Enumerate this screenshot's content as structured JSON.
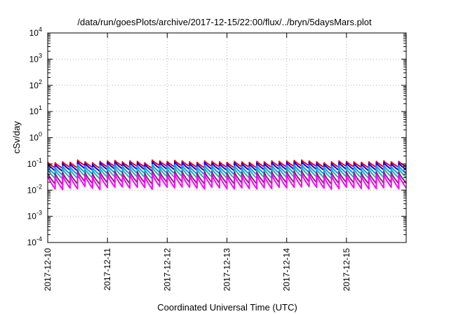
{
  "chart_data": {
    "type": "line",
    "title": "/data/run/goesPlots/archive/2017-12-15/22:00/flux/../bryn/5daysMars.plot",
    "xlabel": "Coordinated Universal Time (UTC)",
    "ylabel": "cSv/day",
    "yscale": "log",
    "ylim": [
      0.0001,
      10000
    ],
    "y_ticks": [
      {
        "base": "10",
        "exp": "-4"
      },
      {
        "base": "10",
        "exp": "-3"
      },
      {
        "base": "10",
        "exp": "-2"
      },
      {
        "base": "10",
        "exp": "-1"
      },
      {
        "base": "10",
        "exp": "0"
      },
      {
        "base": "10",
        "exp": "1"
      },
      {
        "base": "10",
        "exp": "2"
      },
      {
        "base": "10",
        "exp": "3"
      },
      {
        "base": "10",
        "exp": "4"
      }
    ],
    "xlim": [
      "2017-12-10",
      "2017-12-16"
    ],
    "x_ticks": [
      "2017-12-10",
      "2017-12-11",
      "2017-12-12",
      "2017-12-13",
      "2017-12-14",
      "2017-12-15"
    ],
    "grid": true,
    "legend": "none",
    "sawtooth_period_hours": 3,
    "series": [
      {
        "color": "#ff0000",
        "values": [
          0.115,
          0.11,
          0.12,
          0.115,
          0.14,
          0.12,
          0.11,
          0.125,
          0.13,
          0.135,
          0.12,
          0.13,
          0.125,
          0.11,
          0.14,
          0.13,
          0.125,
          0.135,
          0.13,
          0.12,
          0.115,
          0.13,
          0.125,
          0.12,
          0.115,
          0.125,
          0.12,
          0.115,
          0.125,
          0.12,
          0.13,
          0.125,
          0.13,
          0.135,
          0.14,
          0.13,
          0.12,
          0.11,
          0.12,
          0.13,
          0.125,
          0.12,
          0.115,
          0.12,
          0.125,
          0.13,
          0.12,
          0.125
        ],
        "low_ratio": 0.62
      },
      {
        "color": "#0000ff",
        "values": [
          0.1,
          0.095,
          0.105,
          0.1,
          0.12,
          0.105,
          0.095,
          0.11,
          0.115,
          0.118,
          0.105,
          0.112,
          0.11,
          0.097,
          0.122,
          0.113,
          0.108,
          0.118,
          0.113,
          0.105,
          0.1,
          0.113,
          0.108,
          0.104,
          0.1,
          0.109,
          0.104,
          0.1,
          0.108,
          0.104,
          0.113,
          0.108,
          0.113,
          0.118,
          0.122,
          0.113,
          0.105,
          0.097,
          0.104,
          0.113,
          0.109,
          0.104,
          0.1,
          0.104,
          0.109,
          0.113,
          0.104,
          0.109
        ],
        "low_ratio": 0.55
      },
      {
        "color": "#1e90ff",
        "values": [
          0.078,
          0.074,
          0.082,
          0.078,
          0.094,
          0.082,
          0.074,
          0.086,
          0.09,
          0.092,
          0.082,
          0.088,
          0.086,
          0.076,
          0.095,
          0.088,
          0.085,
          0.092,
          0.088,
          0.082,
          0.078,
          0.088,
          0.085,
          0.081,
          0.078,
          0.085,
          0.081,
          0.078,
          0.084,
          0.081,
          0.088,
          0.085,
          0.088,
          0.092,
          0.095,
          0.088,
          0.082,
          0.076,
          0.081,
          0.088,
          0.085,
          0.081,
          0.078,
          0.081,
          0.085,
          0.088,
          0.081,
          0.085
        ],
        "low_ratio": 0.5
      },
      {
        "color": "#20b2aa",
        "values": [
          0.062,
          0.059,
          0.065,
          0.062,
          0.075,
          0.065,
          0.059,
          0.068,
          0.071,
          0.073,
          0.065,
          0.07,
          0.068,
          0.06,
          0.076,
          0.07,
          0.067,
          0.073,
          0.07,
          0.065,
          0.062,
          0.07,
          0.067,
          0.064,
          0.062,
          0.067,
          0.064,
          0.062,
          0.067,
          0.064,
          0.07,
          0.067,
          0.07,
          0.073,
          0.076,
          0.07,
          0.065,
          0.06,
          0.064,
          0.07,
          0.067,
          0.064,
          0.062,
          0.064,
          0.067,
          0.07,
          0.064,
          0.067
        ],
        "low_ratio": 0.45
      },
      {
        "color": "#7b2a6e",
        "values": [
          0.045,
          0.043,
          0.047,
          0.045,
          0.055,
          0.047,
          0.043,
          0.05,
          0.052,
          0.053,
          0.047,
          0.051,
          0.05,
          0.044,
          0.055,
          0.051,
          0.049,
          0.053,
          0.051,
          0.047,
          0.045,
          0.051,
          0.049,
          0.047,
          0.045,
          0.049,
          0.047,
          0.045,
          0.049,
          0.047,
          0.051,
          0.049,
          0.051,
          0.053,
          0.055,
          0.051,
          0.047,
          0.044,
          0.047,
          0.051,
          0.049,
          0.047,
          0.045,
          0.047,
          0.049,
          0.051,
          0.047,
          0.049
        ],
        "low_ratio": 0.38
      },
      {
        "color": "#ff00ff",
        "values": [
          0.035,
          0.033,
          0.037,
          0.035,
          0.043,
          0.037,
          0.033,
          0.039,
          0.04,
          0.041,
          0.037,
          0.04,
          0.039,
          0.034,
          0.043,
          0.04,
          0.038,
          0.041,
          0.04,
          0.037,
          0.035,
          0.04,
          0.038,
          0.036,
          0.035,
          0.038,
          0.036,
          0.035,
          0.038,
          0.036,
          0.04,
          0.038,
          0.04,
          0.041,
          0.043,
          0.04,
          0.037,
          0.034,
          0.036,
          0.04,
          0.038,
          0.036,
          0.035,
          0.036,
          0.038,
          0.04,
          0.036,
          0.038
        ],
        "low_ratio": 0.32
      }
    ]
  }
}
